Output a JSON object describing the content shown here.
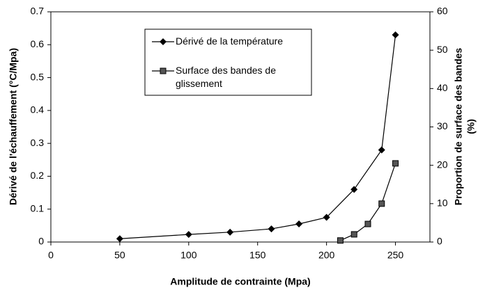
{
  "chart_data": {
    "type": "line",
    "xlabel": "Amplitude de contrainte (Mpa)",
    "ylabel": "Dérivé de l'échauffement (°C/Mpa)",
    "y2label": [
      "Proportion de surface des bandes",
      "(%)"
    ],
    "xlim": [
      0,
      275
    ],
    "xticks": [
      0,
      50,
      100,
      150,
      200,
      250
    ],
    "ylim": [
      0,
      0.7
    ],
    "yticks": [
      0,
      0.1,
      0.2,
      0.3,
      0.4,
      0.5,
      0.6,
      0.7
    ],
    "y2lim": [
      0,
      60
    ],
    "y2ticks": [
      0,
      10,
      20,
      30,
      40,
      50,
      60
    ],
    "series": [
      {
        "name": "Dérivé de la température",
        "color": "#000000",
        "marker": "diamond",
        "x": [
          50,
          100,
          130,
          160,
          180,
          200,
          220,
          240,
          250
        ],
        "values": [
          0.01,
          0.023,
          0.03,
          0.04,
          0.055,
          0.075,
          0.16,
          0.28,
          0.63
        ]
      },
      {
        "name": "Surface des bandes de glissement",
        "color": "#555555",
        "marker": "square",
        "axis": "y2",
        "x": [
          210,
          220,
          230,
          240,
          250
        ],
        "values": [
          0.4,
          2,
          4.7,
          10,
          20.5
        ]
      }
    ]
  }
}
